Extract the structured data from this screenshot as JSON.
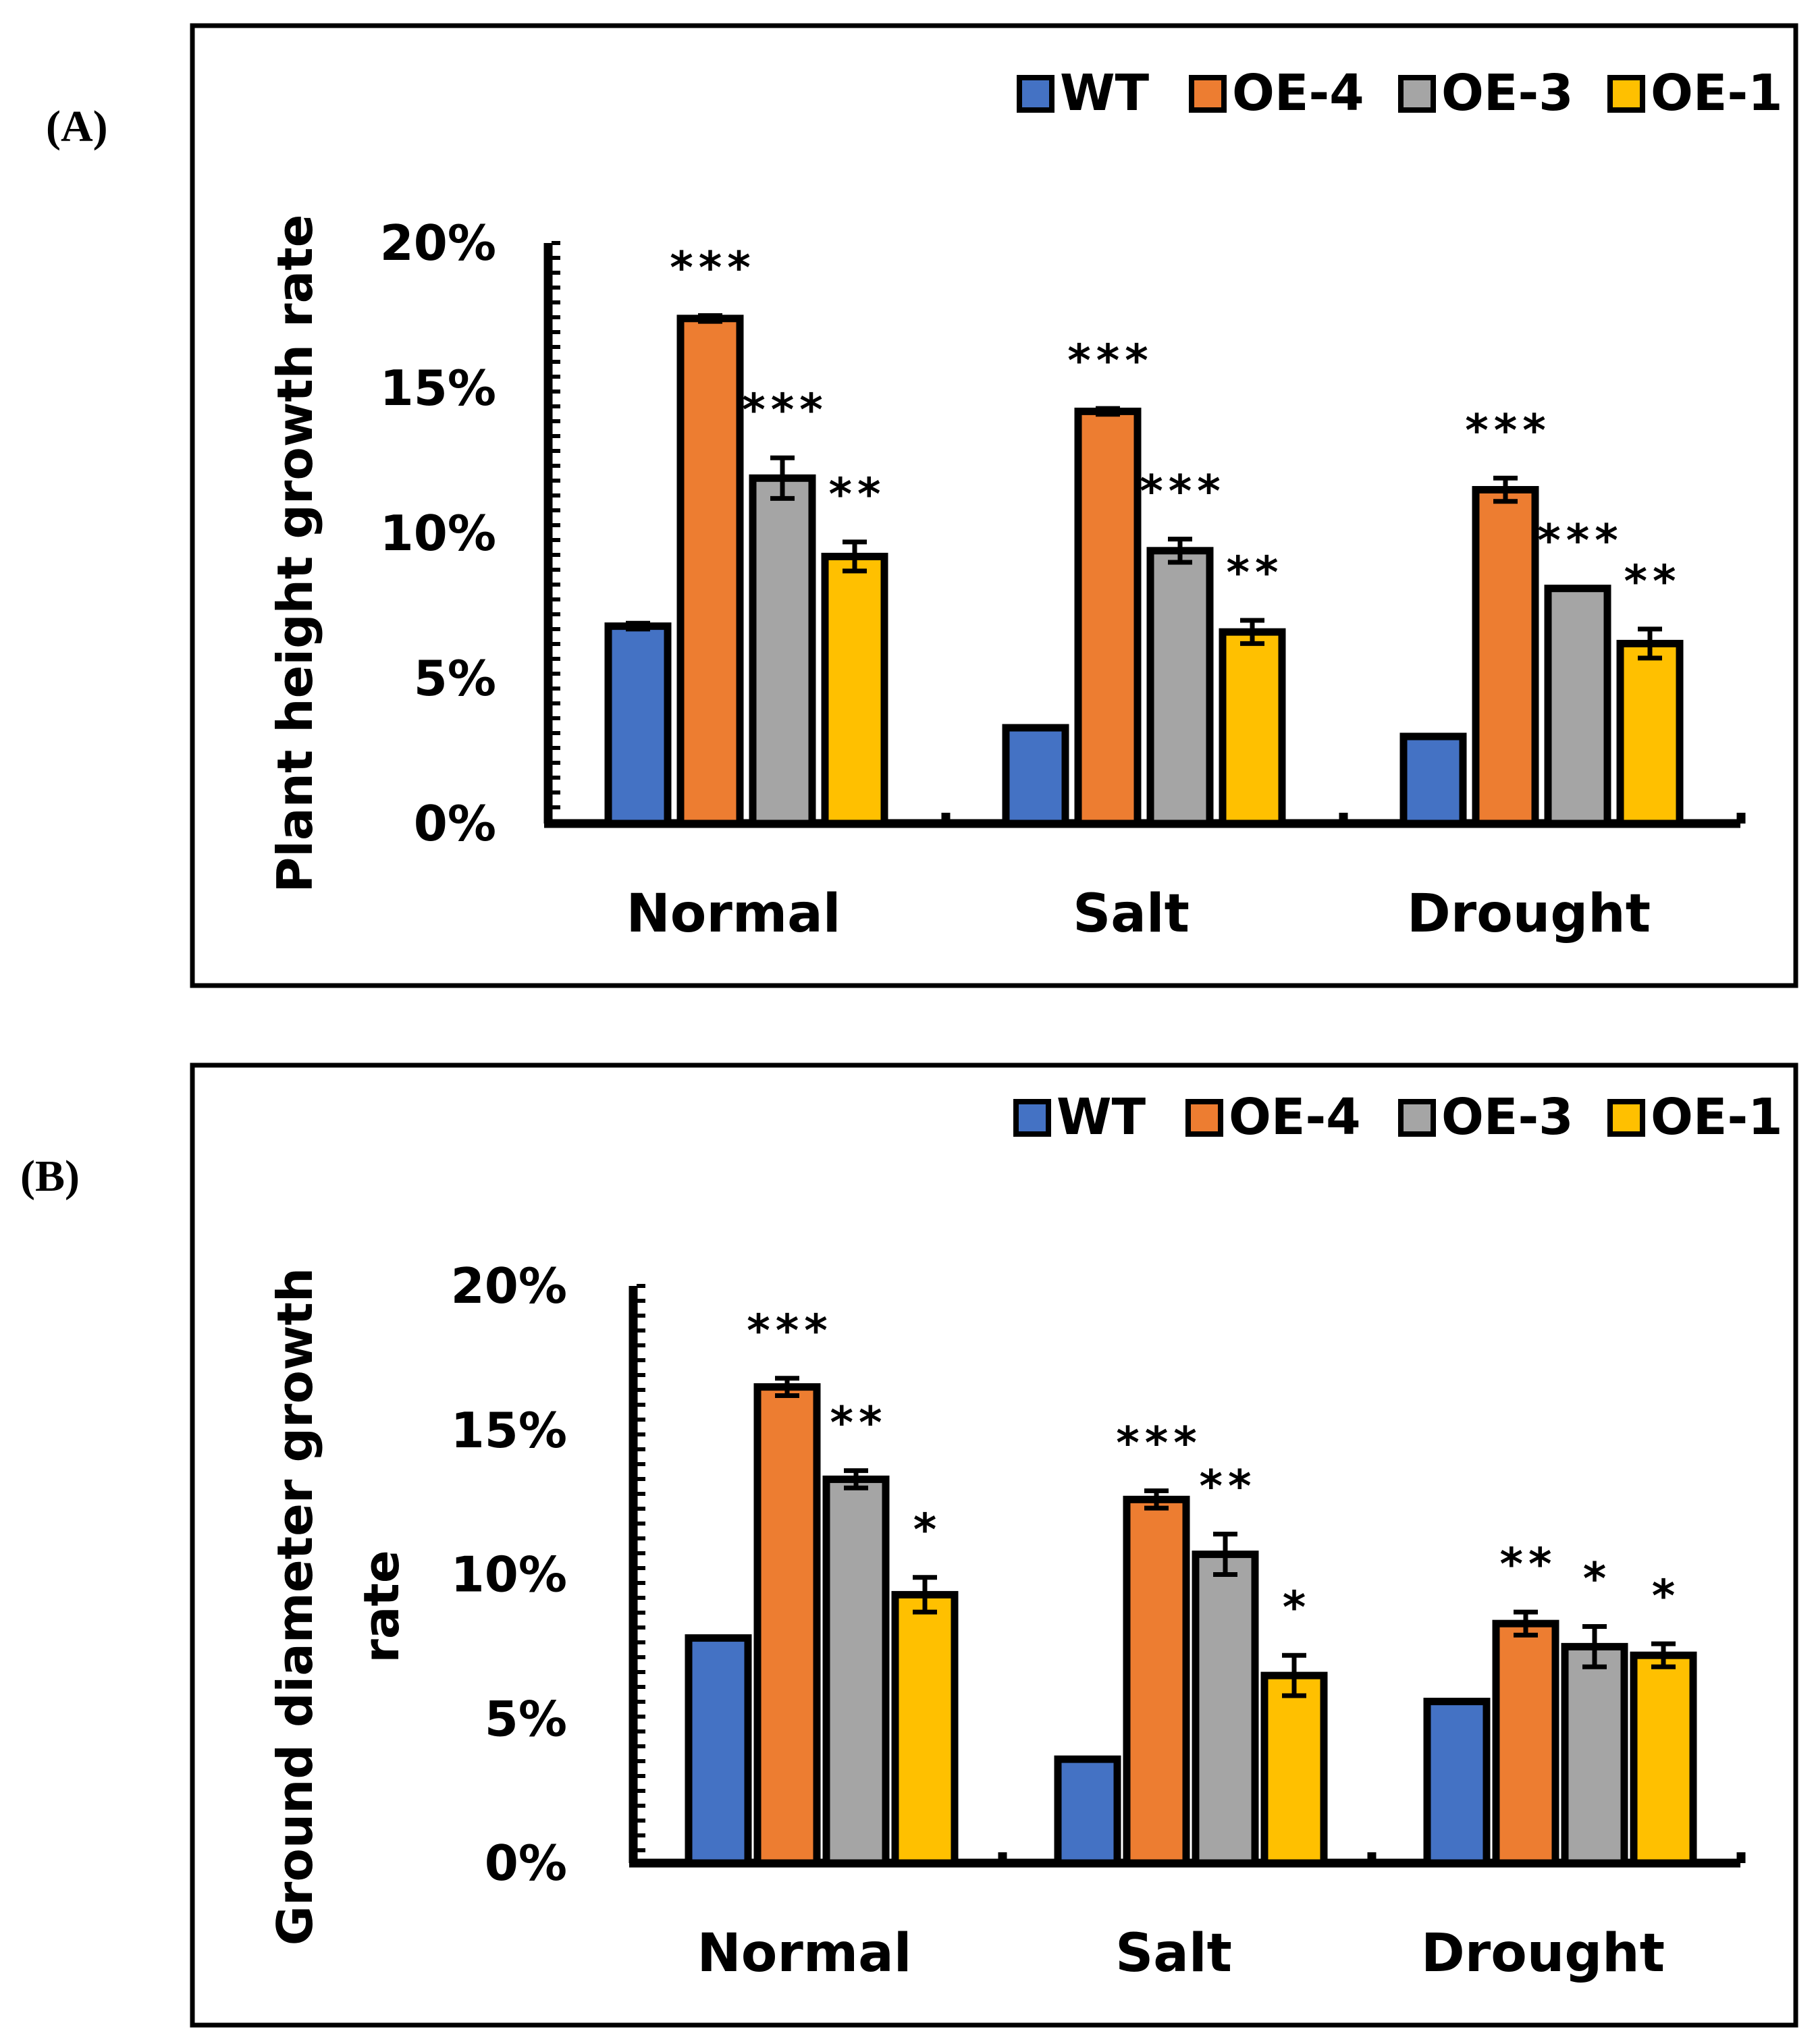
{
  "colors": {
    "WT": "#4472C4",
    "OE-4": "#ED7D31",
    "OE-3": "#A5A5A5",
    "OE-1": "#FFC000"
  },
  "chart_data": [
    {
      "panel": "(A)",
      "type": "bar",
      "ylabel": "Plant height growth rate",
      "xlabel": "",
      "title": "",
      "ylim": [
        0,
        20
      ],
      "yticks": [
        "0%",
        "5%",
        "10%",
        "15%",
        "20%"
      ],
      "categories": [
        "Normal",
        "Salt",
        "Drought"
      ],
      "legend_position": "top-right",
      "series": [
        {
          "name": "WT",
          "values": [
            6.8,
            3.3,
            3.0
          ],
          "errors": [
            0.1,
            0,
            0
          ],
          "sig": [
            "",
            "",
            ""
          ]
        },
        {
          "name": "OE-4",
          "values": [
            17.4,
            14.2,
            11.5
          ],
          "errors": [
            0.1,
            0.1,
            0.4
          ],
          "sig": [
            "***",
            "***",
            "***"
          ]
        },
        {
          "name": "OE-3",
          "values": [
            11.9,
            9.4,
            8.1
          ],
          "errors": [
            0.7,
            0.4,
            0
          ],
          "sig": [
            "***",
            "***",
            "***"
          ]
        },
        {
          "name": "OE-1",
          "values": [
            9.2,
            6.6,
            6.2
          ],
          "errors": [
            0.5,
            0.4,
            0.5
          ],
          "sig": [
            "**",
            "**",
            "**"
          ]
        }
      ]
    },
    {
      "panel": "(B)",
      "type": "bar",
      "ylabel": "Ground diameter growth rate",
      "xlabel": "",
      "title": "",
      "ylim": [
        0,
        20
      ],
      "yticks": [
        "0%",
        "5%",
        "10%",
        "15%",
        "20%"
      ],
      "categories": [
        "Normal",
        "Salt",
        "Drought"
      ],
      "legend_position": "top-right",
      "series": [
        {
          "name": "WT",
          "values": [
            7.8,
            3.6,
            5.6
          ],
          "errors": [
            0,
            0,
            0
          ],
          "sig": [
            "",
            "",
            ""
          ]
        },
        {
          "name": "OE-4",
          "values": [
            16.5,
            12.6,
            8.3
          ],
          "errors": [
            0.3,
            0.3,
            0.4
          ],
          "sig": [
            "***",
            "***",
            "**"
          ]
        },
        {
          "name": "OE-3",
          "values": [
            13.3,
            10.7,
            7.5
          ],
          "errors": [
            0.3,
            0.7,
            0.7
          ],
          "sig": [
            "**",
            "**",
            "*"
          ]
        },
        {
          "name": "OE-1",
          "values": [
            9.3,
            6.5,
            7.2
          ],
          "errors": [
            0.6,
            0.7,
            0.4
          ],
          "sig": [
            "*",
            "*",
            "*"
          ]
        }
      ]
    }
  ]
}
